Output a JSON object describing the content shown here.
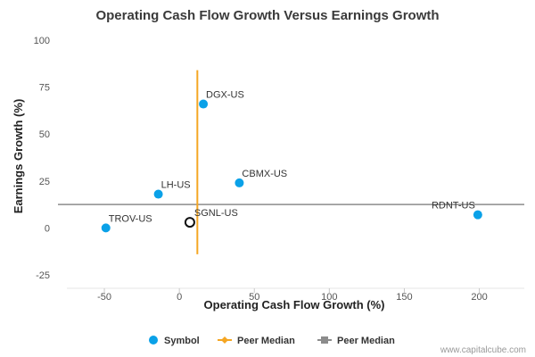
{
  "chart_data": {
    "type": "scatter",
    "title": "Operating Cash Flow Growth Versus Earnings Growth",
    "xlabel": "Operating Cash Flow Growth (%)",
    "ylabel": "Earnings Growth (%)",
    "xlim": [
      -75,
      230
    ],
    "ylim": [
      -25,
      100
    ],
    "x_ticks": [
      -50,
      0,
      50,
      100,
      150,
      200
    ],
    "y_ticks": [
      -25,
      0,
      25,
      50,
      75,
      100
    ],
    "grid": false,
    "series": [
      {
        "name": "Symbol",
        "color": "#0aa1e8",
        "points": [
          {
            "label": "DGX-US",
            "x": 16,
            "y": 66
          },
          {
            "label": "CBMX-US",
            "x": 40,
            "y": 24
          },
          {
            "label": "LH-US",
            "x": -14,
            "y": 18
          },
          {
            "label": "TROV-US",
            "x": -49,
            "y": 0
          },
          {
            "label": "RDNT-US",
            "x": 199,
            "y": 7
          }
        ]
      }
    ],
    "highlight": {
      "label": "SGNL-US",
      "x": 7,
      "y": 3,
      "marker": "hollow-circle",
      "color": "#111111"
    },
    "peer_median_x": {
      "name": "Peer Median",
      "value": 12,
      "color": "#f5a623"
    },
    "peer_median_y": {
      "name": "Peer Median",
      "value": 12.5,
      "color": "#8c8c8c"
    },
    "legend": {
      "placement": "bottom-center",
      "items": [
        {
          "label": "Symbol",
          "marker": "circle",
          "color": "#0aa1e8"
        },
        {
          "label": "Peer Median",
          "marker": "line-diamond",
          "color": "#f5a623"
        },
        {
          "label": "Peer Median",
          "marker": "line-square",
          "color": "#8c8c8c"
        }
      ]
    },
    "credit": "www.capitalcube.com"
  }
}
